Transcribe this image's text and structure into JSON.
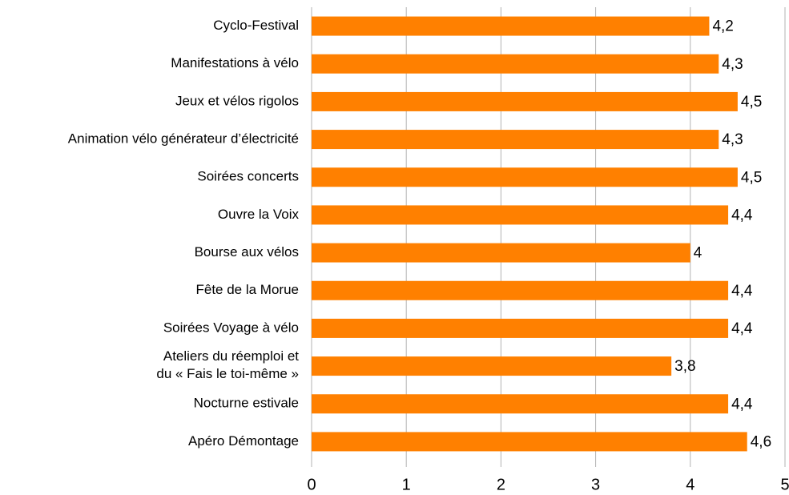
{
  "chart_data": {
    "type": "hbar",
    "categories": [
      "Cyclo-Festival",
      "Manifestations à vélo",
      "Jeux et vélos rigolos",
      "Animation vélo générateur d’électricité",
      "Soirées concerts",
      "Ouvre la Voix",
      "Bourse aux vélos",
      "Fête de la Morue",
      "Soirées Voyage à vélo",
      "Ateliers du réemploi et\ndu « Fais le toi-même »",
      "Nocturne estivale",
      "Apéro Démontage"
    ],
    "values": [
      4.2,
      4.3,
      4.5,
      4.3,
      4.5,
      4.4,
      4,
      4.4,
      4.4,
      3.8,
      4.4,
      4.6
    ],
    "value_labels": [
      "4,2",
      "4,3",
      "4,5",
      "4,3",
      "4,5",
      "4,4",
      "4",
      "4,4",
      "4,4",
      "3,8",
      "4,4",
      "4,6"
    ],
    "color": "#ff8000",
    "xlim": [
      0,
      5
    ],
    "xticks": [
      0,
      1,
      2,
      3,
      4,
      5
    ],
    "grid": true
  }
}
